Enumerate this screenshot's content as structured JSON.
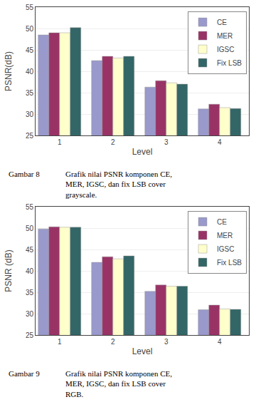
{
  "chart_data": [
    {
      "type": "bar",
      "x": [
        1,
        2,
        3,
        4
      ],
      "xlabel": "Level",
      "ylabel": "PSNR(dB)",
      "xlim": [
        0.55,
        4.55
      ],
      "xticks": [
        1,
        2,
        3,
        4
      ],
      "ylim": [
        25,
        55
      ],
      "yticks": [
        25,
        30,
        35,
        40,
        45,
        50,
        55
      ],
      "grid": true,
      "legend": "upper right",
      "series": [
        {
          "name": "CE",
          "color": "#9999cc",
          "values": [
            48.5,
            42.5,
            36.3,
            31.2
          ]
        },
        {
          "name": "MER",
          "color": "#993366",
          "values": [
            49.0,
            43.5,
            37.8,
            32.3
          ]
        },
        {
          "name": "IGSC",
          "color": "#ffffcc",
          "values": [
            49.0,
            43.1,
            37.3,
            31.5
          ]
        },
        {
          "name": "Fix LSB",
          "color": "#336666",
          "values": [
            50.2,
            43.5,
            37.0,
            31.3
          ]
        }
      ],
      "annotations": [
        {
          "text": "Gambar 8"
        },
        {
          "text": "Grafik nilai PSNR komponen CE, MER, IGSC, dan fix LSB cover grayscale."
        }
      ]
    },
    {
      "type": "bar",
      "x": [
        1,
        2,
        3,
        4
      ],
      "xlabel": "Level",
      "ylabel": "PSNR (dB)",
      "xlim": [
        0.55,
        4.55
      ],
      "xticks": [
        1,
        2,
        3,
        4
      ],
      "ylim": [
        25,
        55
      ],
      "yticks": [
        25,
        30,
        35,
        40,
        45,
        50,
        55
      ],
      "grid": true,
      "legend": "upper right",
      "series": [
        {
          "name": "CE",
          "color": "#9999cc",
          "values": [
            49.8,
            42.0,
            35.2,
            30.9
          ]
        },
        {
          "name": "MER",
          "color": "#993366",
          "values": [
            50.3,
            43.3,
            36.7,
            32.0
          ]
        },
        {
          "name": "IGSC",
          "color": "#ffffcc",
          "values": [
            50.2,
            42.8,
            36.4,
            31.1
          ]
        },
        {
          "name": "Fix LSB",
          "color": "#336666",
          "values": [
            50.2,
            43.5,
            36.4,
            31.0
          ]
        }
      ],
      "annotations": [
        {
          "text": "Gambar 9"
        },
        {
          "text": "Grafik nilai PSNR komponen CE, MER, IGSC, dan fix LSB cover RGB."
        }
      ]
    }
  ]
}
